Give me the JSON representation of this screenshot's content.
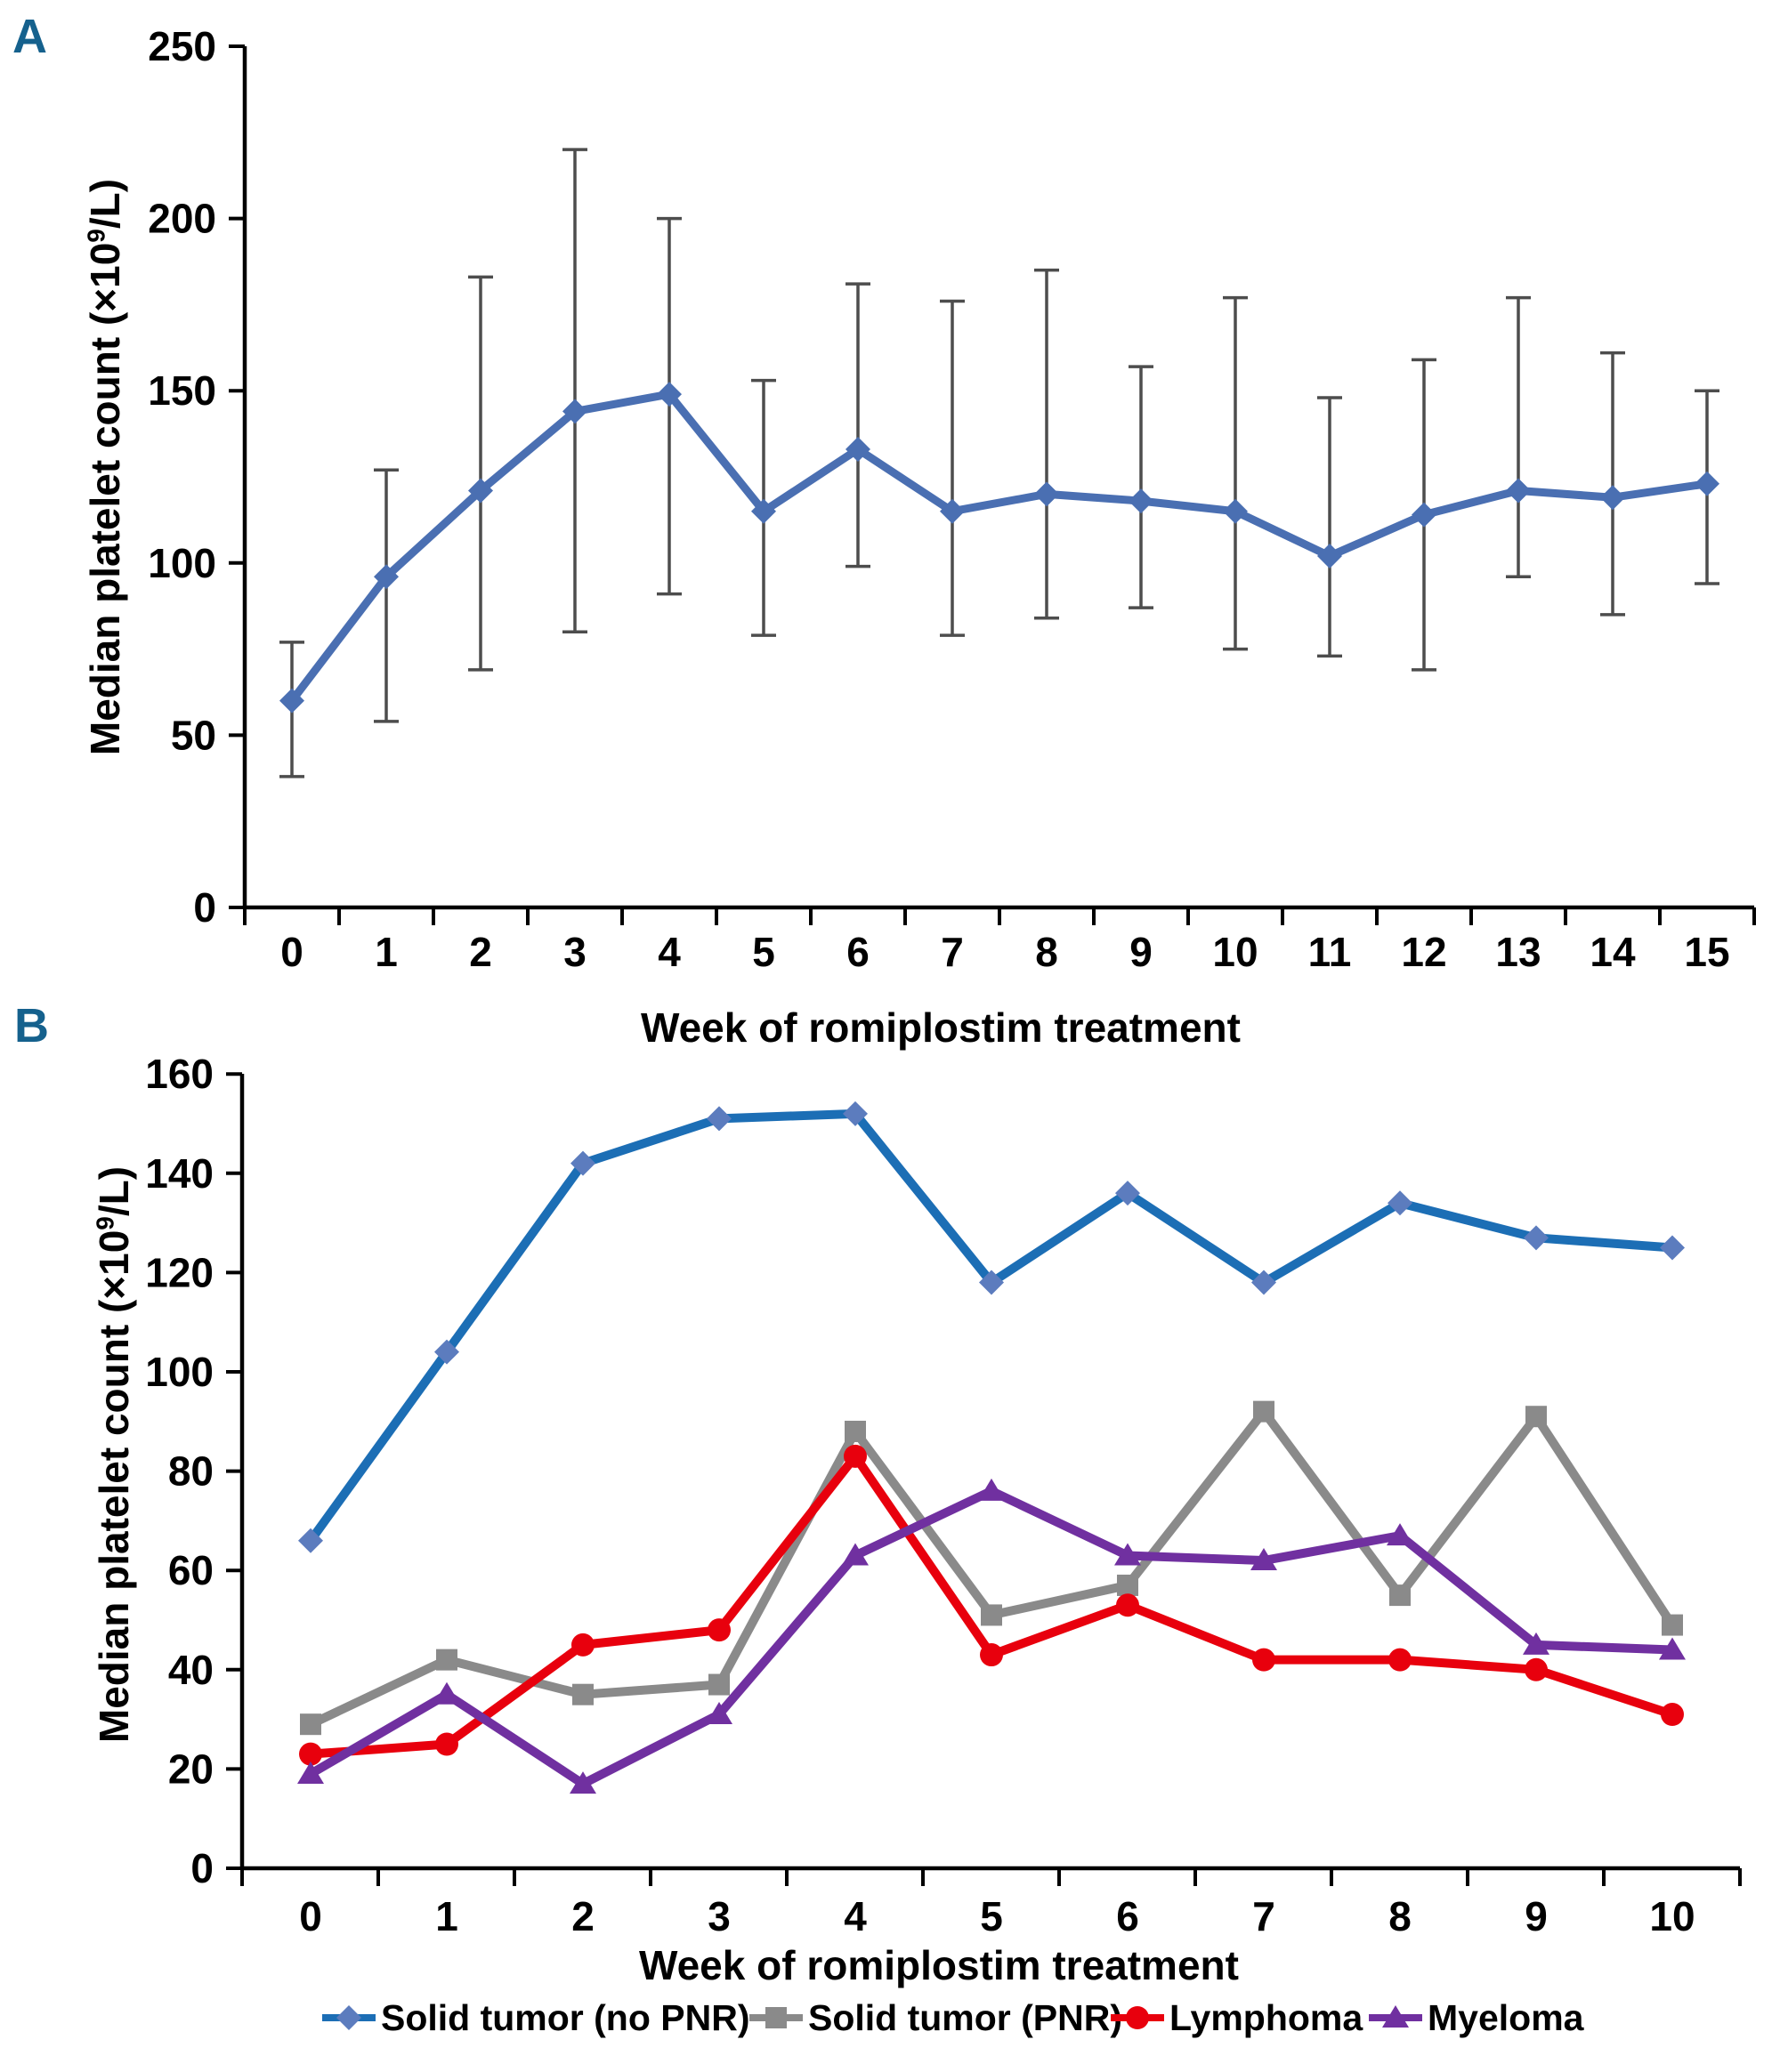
{
  "figure": {
    "accent_color": "#15618D",
    "background_color": "#ffffff"
  },
  "chart_data": [
    {
      "id": "panel-a",
      "type": "line",
      "panel_label": "A",
      "title": "",
      "xlabel": "Week of romiplostim treatment",
      "ylabel": "Median platelet count (×10⁹/L)",
      "ylabel_parts": {
        "main": "Median platelet count (×10",
        "sup": "9",
        "end": "/L)"
      },
      "x": [
        0,
        1,
        2,
        3,
        4,
        5,
        6,
        7,
        8,
        9,
        10,
        11,
        12,
        13,
        14,
        15
      ],
      "ylim": [
        0,
        250
      ],
      "yticks": [
        0,
        50,
        100,
        150,
        200,
        250
      ],
      "grid": false,
      "error_bar_color": "#4D4D4D",
      "series": [
        {
          "name": "Median platelet count",
          "color": "#4A6FB2",
          "marker": "diamond",
          "values": [
            60,
            96,
            121,
            144,
            149,
            115,
            133,
            115,
            120,
            118,
            115,
            102,
            114,
            121,
            119,
            123
          ],
          "error_low": [
            38,
            54,
            69,
            80,
            91,
            79,
            99,
            79,
            84,
            87,
            75,
            73,
            69,
            96,
            85,
            94
          ],
          "error_high": [
            77,
            127,
            183,
            220,
            200,
            153,
            181,
            176,
            185,
            157,
            177,
            148,
            159,
            177,
            161,
            150
          ]
        }
      ]
    },
    {
      "id": "panel-b",
      "type": "line",
      "panel_label": "B",
      "title": "",
      "xlabel": "Week of romiplostim treatment",
      "ylabel": "Median platelet count (×10⁹/L)",
      "ylabel_parts": {
        "main": "Median platelet count (×10",
        "sup": "9",
        "end": "/L)"
      },
      "x": [
        0,
        1,
        2,
        3,
        4,
        5,
        6,
        7,
        8,
        9,
        10
      ],
      "ylim": [
        0,
        160
      ],
      "yticks": [
        0,
        20,
        40,
        60,
        80,
        100,
        120,
        140,
        160
      ],
      "grid": false,
      "legend_position": "bottom",
      "series": [
        {
          "name": "Solid tumor (no PNR)",
          "color": "#1C6EB5",
          "marker": "diamond",
          "marker_color": "#5C7CBE",
          "values": [
            66,
            104,
            142,
            151,
            152,
            118,
            136,
            118,
            134,
            127,
            125
          ]
        },
        {
          "name": "Solid tumor (PNR)",
          "color": "#8A8A8A",
          "marker": "square",
          "values": [
            29,
            42,
            35,
            37,
            88,
            51,
            57,
            92,
            55,
            91,
            49
          ]
        },
        {
          "name": "Lymphoma",
          "color": "#E8000D",
          "marker": "circle",
          "values": [
            23,
            25,
            45,
            48,
            83,
            43,
            53,
            42,
            42,
            40,
            31
          ]
        },
        {
          "name": "Myeloma",
          "color": "#7030A0",
          "marker": "triangle",
          "values": [
            19,
            35,
            17,
            31,
            63,
            76,
            63,
            62,
            67,
            45,
            44
          ]
        }
      ]
    }
  ]
}
